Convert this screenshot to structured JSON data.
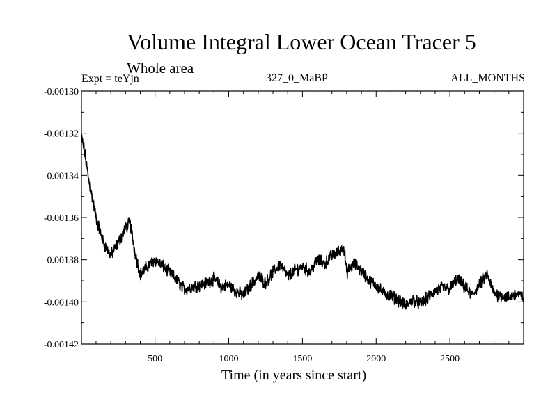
{
  "chart_data": {
    "type": "line",
    "title": "Volume Integral Lower Ocean Tracer 5",
    "subtitle": "Whole area",
    "experiment_label": "Expt = teYjn",
    "period_label": "327_0_MaBP",
    "months_label": "ALL_MONTHS",
    "xlabel": "Time (in years since start)",
    "ylabel": "",
    "xlim": [
      1,
      3000
    ],
    "ylim": [
      -0.00142,
      -0.0013
    ],
    "x_ticks": [
      500,
      1000,
      1500,
      2000,
      2500
    ],
    "x_tick_labels": [
      "500",
      "1000",
      "1500",
      "2000",
      "2500"
    ],
    "y_ticks": [
      -0.0013,
      -0.00132,
      -0.00134,
      -0.00136,
      -0.00138,
      -0.0014,
      -0.00142
    ],
    "y_tick_labels": [
      "-0.00130",
      "-0.00132",
      "-0.00134",
      "-0.00136",
      "-0.00138",
      "-0.00140",
      "-0.00142"
    ],
    "line_color": "#000000",
    "series": [
      {
        "name": "volume integral",
        "x": [
          1,
          20,
          50,
          100,
          150,
          200,
          250,
          300,
          330,
          360,
          400,
          450,
          500,
          550,
          600,
          650,
          700,
          750,
          800,
          850,
          900,
          950,
          1000,
          1050,
          1100,
          1150,
          1200,
          1250,
          1300,
          1350,
          1400,
          1450,
          1500,
          1550,
          1600,
          1650,
          1700,
          1750,
          1780,
          1800,
          1850,
          1900,
          1950,
          2000,
          2050,
          2100,
          2150,
          2200,
          2250,
          2300,
          2350,
          2400,
          2450,
          2500,
          2550,
          2600,
          2650,
          2700,
          2750,
          2800,
          2850,
          2900,
          2950,
          3000
        ],
        "values": [
          -0.001322,
          -0.001328,
          -0.001342,
          -0.00136,
          -0.001372,
          -0.001378,
          -0.001372,
          -0.001365,
          -0.001362,
          -0.001375,
          -0.001387,
          -0.001383,
          -0.00138,
          -0.001383,
          -0.001386,
          -0.00139,
          -0.001394,
          -0.001393,
          -0.001392,
          -0.001391,
          -0.001389,
          -0.001393,
          -0.001392,
          -0.001395,
          -0.001397,
          -0.001392,
          -0.001388,
          -0.001391,
          -0.001386,
          -0.001382,
          -0.001388,
          -0.001385,
          -0.001383,
          -0.001386,
          -0.00138,
          -0.001382,
          -0.001378,
          -0.001376,
          -0.001374,
          -0.001386,
          -0.001382,
          -0.001385,
          -0.00139,
          -0.001392,
          -0.001396,
          -0.001397,
          -0.001399,
          -0.001402,
          -0.001399,
          -0.001401,
          -0.001398,
          -0.001395,
          -0.001393,
          -0.001394,
          -0.001389,
          -0.001393,
          -0.001397,
          -0.001392,
          -0.001387,
          -0.001396,
          -0.001397,
          -0.001398,
          -0.001396,
          -0.001398
        ]
      }
    ]
  }
}
